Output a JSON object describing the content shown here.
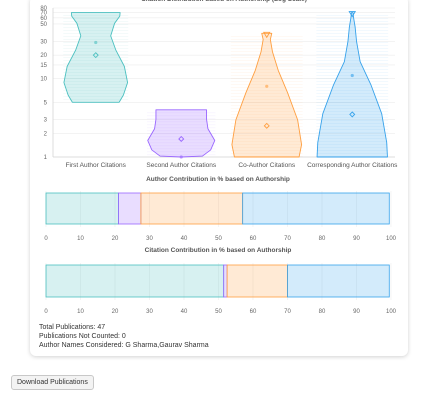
{
  "chart_data": [
    {
      "type": "violin",
      "title": "Citation Distribution based on Authorship (Log Scale)",
      "yscale": "log",
      "ylim": [
        1,
        80
      ],
      "yticks": [
        "1",
        "2",
        "3",
        "5",
        "10",
        "15",
        "20",
        "30",
        "50",
        "60",
        "70",
        "80"
      ],
      "categories": [
        "First Author Citations",
        "Second Author Citations",
        "Co-Author Citations",
        "Corresponding Author Citations"
      ],
      "colors": [
        "#4bc0c0",
        "#9966ff",
        "#ff9f40",
        "#36a2eb"
      ],
      "series": [
        {
          "category": "First Author Citations",
          "min": 5,
          "max": 70,
          "mean": 20,
          "median": 29
        },
        {
          "category": "Second Author Citations",
          "min": 1,
          "max": 4,
          "mean": 1.7,
          "median": 1
        },
        {
          "category": "Co-Author Citations",
          "min": 1,
          "max": 38,
          "mean": 2.5,
          "median": 8
        },
        {
          "category": "Corresponding Author Citations",
          "min": 1,
          "max": 70,
          "mean": 3.5,
          "median": 11
        }
      ]
    },
    {
      "type": "stacked-bar",
      "title": "Author Contribution in % based on Authorship",
      "xlim": [
        0,
        100
      ],
      "xticks": [
        "0",
        "10",
        "20",
        "30",
        "40",
        "50",
        "60",
        "70",
        "80",
        "90",
        "100"
      ],
      "segments": [
        {
          "category": "First Author",
          "value": 21
        },
        {
          "category": "Second Author",
          "value": 6.5
        },
        {
          "category": "Co-Author",
          "value": 29.5
        },
        {
          "category": "Corresponding Author",
          "value": 42.5
        }
      ]
    },
    {
      "type": "stacked-bar",
      "title": "Citation Contribution in % based on Authorship",
      "xlim": [
        0,
        100
      ],
      "xticks": [
        "0",
        "10",
        "20",
        "30",
        "40",
        "50",
        "60",
        "70",
        "80",
        "90",
        "100"
      ],
      "segments": [
        {
          "category": "First Author",
          "value": 51.5
        },
        {
          "category": "Second Author",
          "value": 1
        },
        {
          "category": "Co-Author",
          "value": 17.5
        },
        {
          "category": "Corresponding Author",
          "value": 29.5
        }
      ]
    }
  ],
  "stats": {
    "total": "Total Publications: 47",
    "not_counted": "Publications Not Counted: 0",
    "names": "Author Names Considered: G Sharma,Gaurav Sharma"
  },
  "download_label": "Download Publications"
}
